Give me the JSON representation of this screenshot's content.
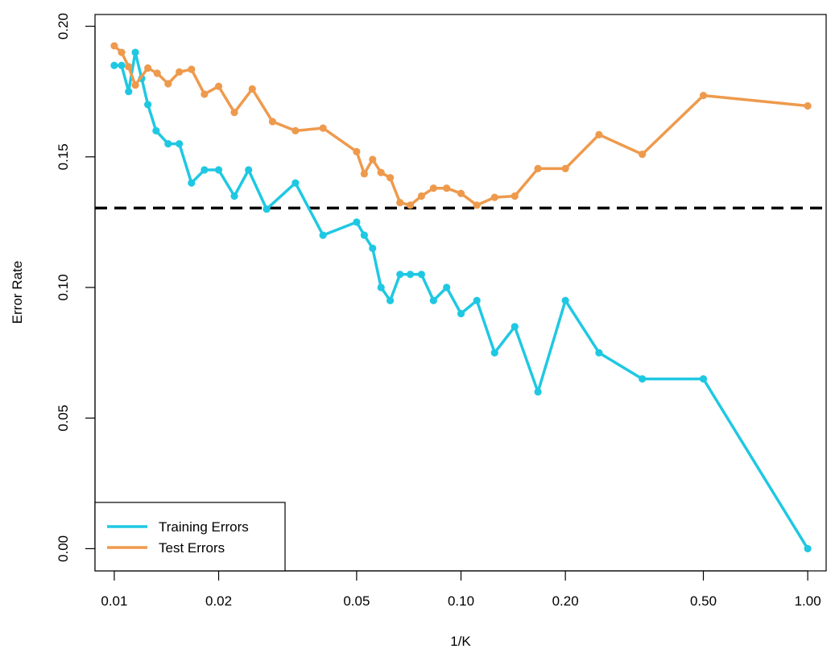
{
  "chart_data": {
    "type": "line",
    "title": "",
    "xlabel": "1/K",
    "ylabel": "Error Rate",
    "x_scale": "log",
    "xlim": [
      0.0088,
      1.13
    ],
    "ylim": [
      -0.0085,
      0.2045
    ],
    "x_ticks": [
      0.01,
      0.02,
      0.05,
      0.1,
      0.2,
      0.5,
      1.0
    ],
    "x_tick_labels": [
      "0.01",
      "0.02",
      "0.05",
      "0.10",
      "0.20",
      "0.50",
      "1.00"
    ],
    "y_ticks": [
      0.0,
      0.05,
      0.1,
      0.15,
      0.2
    ],
    "y_tick_labels": [
      "0.00",
      "0.05",
      "0.10",
      "0.15",
      "0.20"
    ],
    "grid": false,
    "legend_position": "bottom-left",
    "bayes_error_line": {
      "y": 0.1304,
      "color": "#000000",
      "style": "dashed"
    },
    "series": [
      {
        "name": "Training Errors",
        "color": "#1FC8E2",
        "x": [
          0.01,
          0.0105,
          0.011,
          0.0115,
          0.012,
          0.0125,
          0.0132,
          0.0143,
          0.0154,
          0.0167,
          0.0182,
          0.02,
          0.0222,
          0.0244,
          0.0275,
          0.0333,
          0.04,
          0.05,
          0.0526,
          0.0556,
          0.0588,
          0.0625,
          0.0667,
          0.0714,
          0.0769,
          0.0833,
          0.0909,
          0.1,
          0.1111,
          0.125,
          0.1429,
          0.1667,
          0.2,
          0.25,
          0.3333,
          0.5,
          1.0
        ],
        "y": [
          0.185,
          0.185,
          0.175,
          0.19,
          0.18,
          0.17,
          0.16,
          0.155,
          0.155,
          0.14,
          0.145,
          0.145,
          0.135,
          0.145,
          0.13,
          0.14,
          0.12,
          0.125,
          0.12,
          0.115,
          0.1,
          0.095,
          0.105,
          0.105,
          0.105,
          0.095,
          0.1,
          0.09,
          0.095,
          0.075,
          0.085,
          0.06,
          0.095,
          0.075,
          0.065,
          0.065,
          0.0
        ]
      },
      {
        "name": "Test Errors",
        "color": "#EE9A4D",
        "x": [
          0.01,
          0.0105,
          0.011,
          0.0115,
          0.0125,
          0.0133,
          0.0143,
          0.0154,
          0.0167,
          0.0182,
          0.02,
          0.0222,
          0.025,
          0.0286,
          0.0333,
          0.04,
          0.05,
          0.0526,
          0.0556,
          0.0588,
          0.0625,
          0.0667,
          0.0714,
          0.0769,
          0.0833,
          0.0909,
          0.1,
          0.1111,
          0.125,
          0.1429,
          0.1667,
          0.2,
          0.25,
          0.3333,
          0.5,
          1.0
        ],
        "y": [
          0.1925,
          0.19,
          0.1845,
          0.1775,
          0.184,
          0.182,
          0.178,
          0.1825,
          0.1835,
          0.174,
          0.177,
          0.167,
          0.176,
          0.1635,
          0.16,
          0.161,
          0.152,
          0.1435,
          0.149,
          0.144,
          0.142,
          0.1325,
          0.1315,
          0.135,
          0.138,
          0.138,
          0.136,
          0.1315,
          0.1345,
          0.135,
          0.1455,
          0.1455,
          0.1585,
          0.151,
          0.1735,
          0.1695
        ]
      }
    ]
  }
}
